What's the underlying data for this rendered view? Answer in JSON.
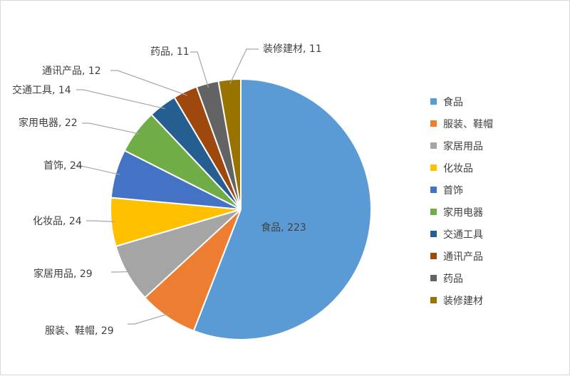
{
  "chart_data": {
    "type": "pie",
    "title": "",
    "legend_position": "right",
    "categories": [
      "食品",
      "服装、鞋帽",
      "家居用品",
      "化妆品",
      "首饰",
      "家用电器",
      "交通工具",
      "通讯产品",
      "药品",
      "装修建材"
    ],
    "values": [
      223,
      29,
      29,
      24,
      24,
      22,
      14,
      12,
      11,
      11
    ],
    "colors": [
      "#5B9BD5",
      "#ED7D31",
      "#A5A5A5",
      "#FFC000",
      "#4472C4",
      "#70AD47",
      "#255E91",
      "#9E480E",
      "#636363",
      "#997300"
    ],
    "data_labels": [
      "食品, 223",
      "服装、鞋帽, 29",
      "家居用品, 29",
      "化妆品, 24",
      "首饰, 24",
      "家用电器, 22",
      "交通工具, 14",
      "通讯产品, 12",
      "药品, 11",
      "装修建材, 11"
    ]
  }
}
